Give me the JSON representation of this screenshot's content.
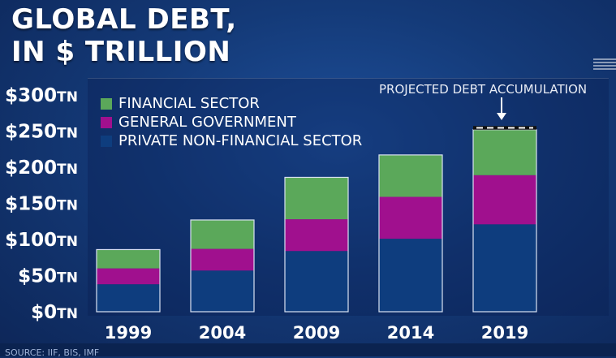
{
  "title_lines": [
    "GLOBAL DEBT,",
    "IN $ TRILLION"
  ],
  "source": "SOURCE: IIF, BIS, IMF",
  "colors": {
    "financial": "#5ba85a",
    "government": "#a0108e",
    "private": "#0e3d7e",
    "bar_outline": "#d9e2f2"
  },
  "chart_data": {
    "type": "bar",
    "stacked": true,
    "categories": [
      "1999",
      "2004",
      "2009",
      "2014",
      "2019"
    ],
    "series": [
      {
        "name": "PRIVATE NON-FINANCIAL SECTOR",
        "values": [
          38,
          57,
          84,
          101,
          121
        ]
      },
      {
        "name": "GENERAL GOVERNMENT",
        "values": [
          22,
          30,
          44,
          58,
          68
        ]
      },
      {
        "name": "FINANCIAL SECTOR",
        "values": [
          26,
          40,
          58,
          58,
          63
        ]
      }
    ],
    "ylim": [
      0,
      300
    ],
    "yticks": [
      {
        "value": 0,
        "label": "$0TN"
      },
      {
        "value": 50,
        "label": "$50TN"
      },
      {
        "value": 100,
        "label": "$100TN"
      },
      {
        "value": 150,
        "label": "$150TN"
      },
      {
        "value": 200,
        "label": "$200TN"
      },
      {
        "value": 250,
        "label": "$250TN"
      },
      {
        "value": 300,
        "label": "$300TN"
      }
    ],
    "legend": [
      "FINANCIAL SECTOR",
      "GENERAL GOVERNMENT",
      "PRIVATE NON-FINANCIAL SECTOR"
    ],
    "legend_position": "top-left",
    "annotation": {
      "text": "PROJECTED DEBT ACCUMULATION",
      "category": "2019",
      "projected_from": 252,
      "projected_to": 257
    }
  }
}
